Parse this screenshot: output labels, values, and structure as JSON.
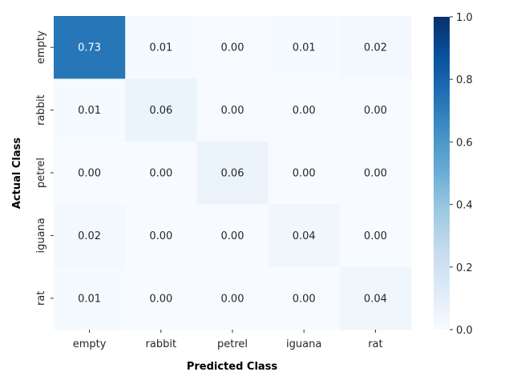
{
  "chart_data": {
    "type": "heatmap",
    "title": "",
    "xlabel": "Predicted Class",
    "ylabel": "Actual Class",
    "x_categories": [
      "empty",
      "rabbit",
      "petrel",
      "iguana",
      "rat"
    ],
    "y_categories": [
      "empty",
      "rabbit",
      "petrel",
      "iguana",
      "rat"
    ],
    "values": [
      [
        0.73,
        0.01,
        0.0,
        0.01,
        0.02
      ],
      [
        0.01,
        0.06,
        0.0,
        0.0,
        0.0
      ],
      [
        0.0,
        0.0,
        0.06,
        0.0,
        0.0
      ],
      [
        0.02,
        0.0,
        0.0,
        0.04,
        0.0
      ],
      [
        0.01,
        0.0,
        0.0,
        0.0,
        0.04
      ]
    ],
    "value_format": "0.00",
    "colormap": "Blues",
    "color_low": "#f7fbff",
    "color_high": "#08306b",
    "colorbar": {
      "range": [
        0.0,
        1.0
      ],
      "ticks": [
        "0.0",
        "0.2",
        "0.4",
        "0.6",
        "0.8",
        "1.0"
      ]
    },
    "grid": false
  }
}
